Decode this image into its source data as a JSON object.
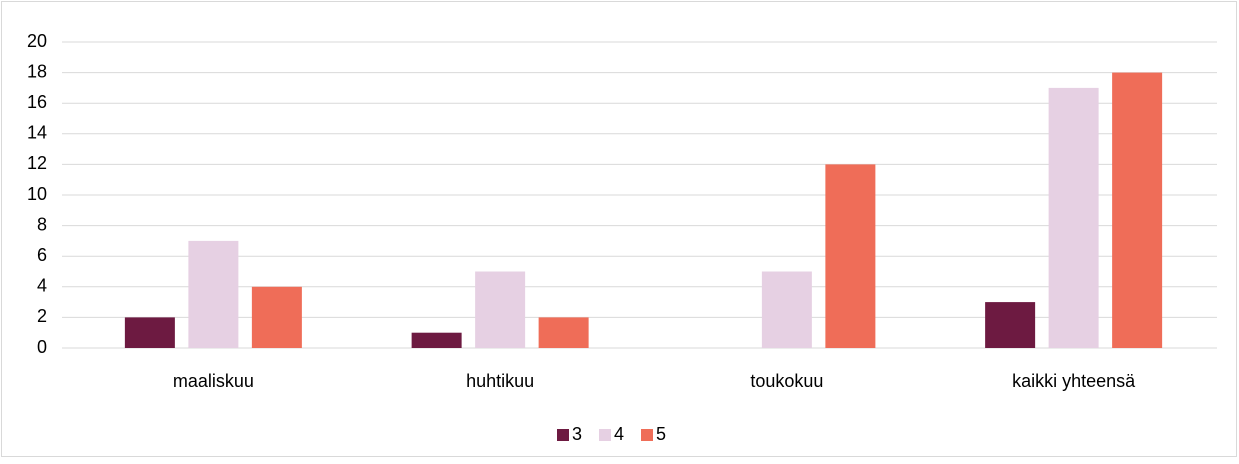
{
  "chart_data": {
    "type": "bar",
    "categories": [
      "maaliskuu",
      "huhtikuu",
      "toukokuu",
      "kaikki yhteensä"
    ],
    "series": [
      {
        "name": "3",
        "color": "#6d1a41",
        "values": [
          2,
          1,
          0,
          3
        ]
      },
      {
        "name": "4",
        "color": "#e6d0e3",
        "values": [
          7,
          5,
          5,
          17
        ]
      },
      {
        "name": "5",
        "color": "#ef6d58",
        "values": [
          4,
          2,
          12,
          18
        ]
      }
    ],
    "ylim": [
      0,
      20
    ],
    "yticks": [
      0,
      2,
      4,
      6,
      8,
      10,
      12,
      14,
      16,
      18,
      20
    ],
    "grid": true,
    "legend": "bottom"
  }
}
